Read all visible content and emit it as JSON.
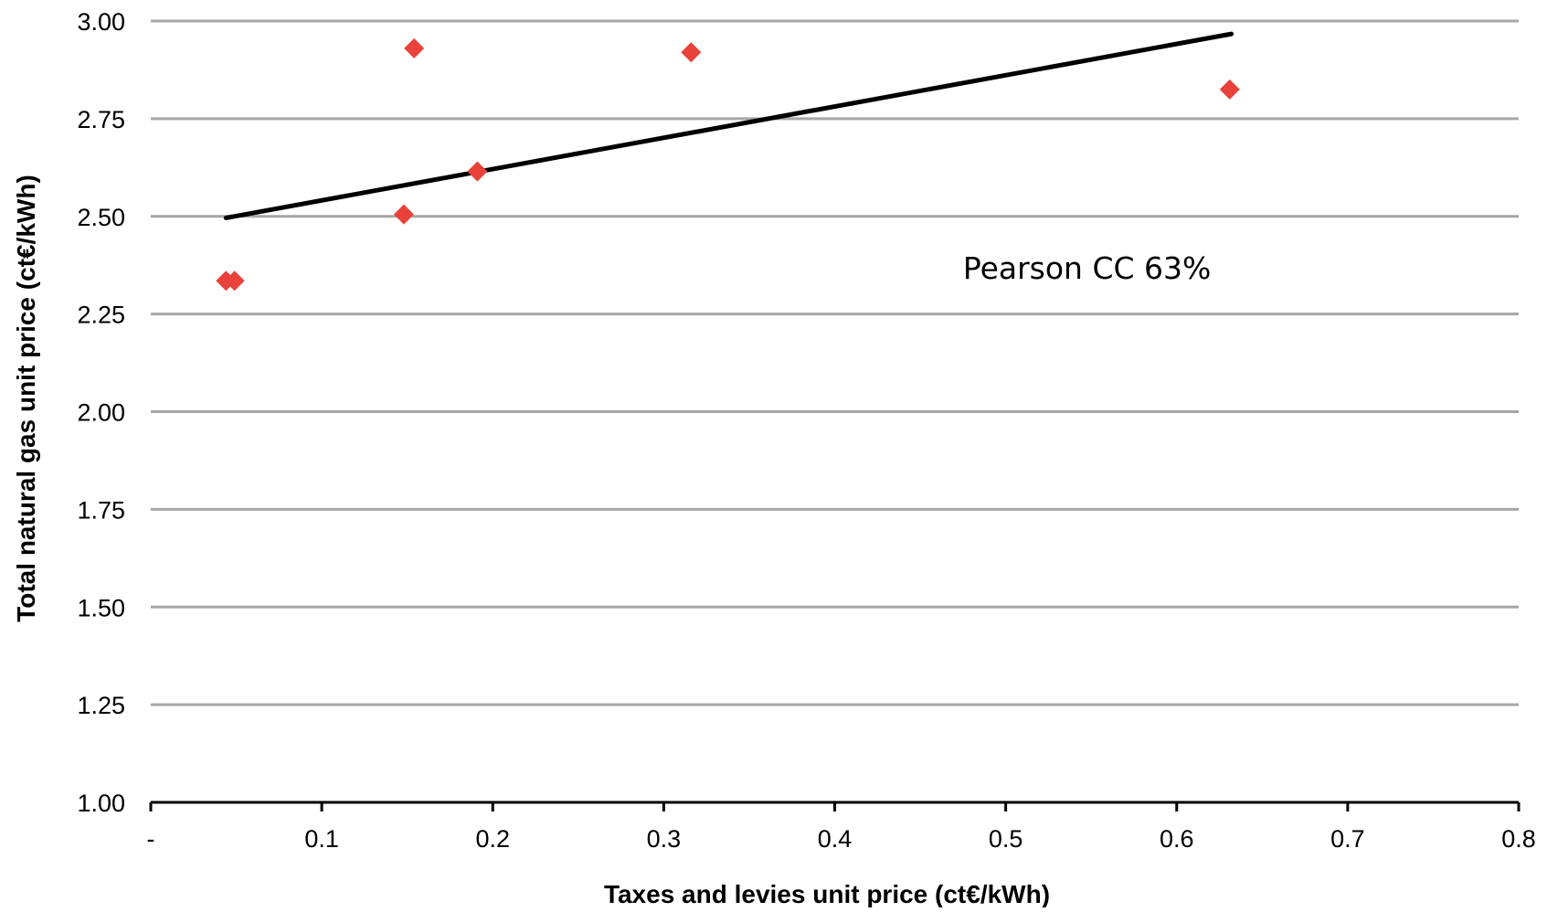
{
  "chart_data": {
    "type": "scatter",
    "title": "",
    "xlabel": "Taxes and levies unit price (ct€/kWh)",
    "ylabel": "Total natural gas unit price (ct€/kWh)",
    "xlim": [
      0,
      0.8
    ],
    "ylim": [
      1.0,
      3.0
    ],
    "x_ticks": [
      {
        "value": 0,
        "label": "-"
      },
      {
        "value": 0.1,
        "label": "0.1"
      },
      {
        "value": 0.2,
        "label": "0.2"
      },
      {
        "value": 0.3,
        "label": "0.3"
      },
      {
        "value": 0.4,
        "label": "0.4"
      },
      {
        "value": 0.5,
        "label": "0.5"
      },
      {
        "value": 0.6,
        "label": "0.6"
      },
      {
        "value": 0.7,
        "label": "0.7"
      },
      {
        "value": 0.8,
        "label": "0.8"
      }
    ],
    "y_ticks": [
      {
        "value": 1.0,
        "label": "1.00"
      },
      {
        "value": 1.25,
        "label": "1.25"
      },
      {
        "value": 1.5,
        "label": "1.50"
      },
      {
        "value": 1.75,
        "label": "1.75"
      },
      {
        "value": 2.0,
        "label": "2.00"
      },
      {
        "value": 2.25,
        "label": "2.25"
      },
      {
        "value": 2.5,
        "label": "2.50"
      },
      {
        "value": 2.75,
        "label": "2.75"
      },
      {
        "value": 3.0,
        "label": "3.00"
      }
    ],
    "grid": "horizontal",
    "legend": "none",
    "series": [
      {
        "points": [
          {
            "x": 0.044,
            "y": 2.335
          },
          {
            "x": 0.049,
            "y": 2.335
          },
          {
            "x": 0.148,
            "y": 2.505
          },
          {
            "x": 0.154,
            "y": 2.93
          },
          {
            "x": 0.191,
            "y": 2.615
          },
          {
            "x": 0.316,
            "y": 2.92
          },
          {
            "x": 0.631,
            "y": 2.825
          }
        ],
        "marker": "diamond",
        "color": "#e8423a"
      }
    ],
    "trendline": {
      "type": "linear",
      "from": {
        "x": 0.044,
        "y": 2.496
      },
      "to": {
        "x": 0.632,
        "y": 2.967
      },
      "color": "#000000"
    },
    "annotations": [
      {
        "text": "Pearson CC  63%",
        "x": 0.475,
        "y": 2.34
      }
    ],
    "colors": {
      "grid": "#a6a6a6",
      "axis": "#000000",
      "marker": "#e8423a",
      "trendline": "#000000"
    }
  }
}
